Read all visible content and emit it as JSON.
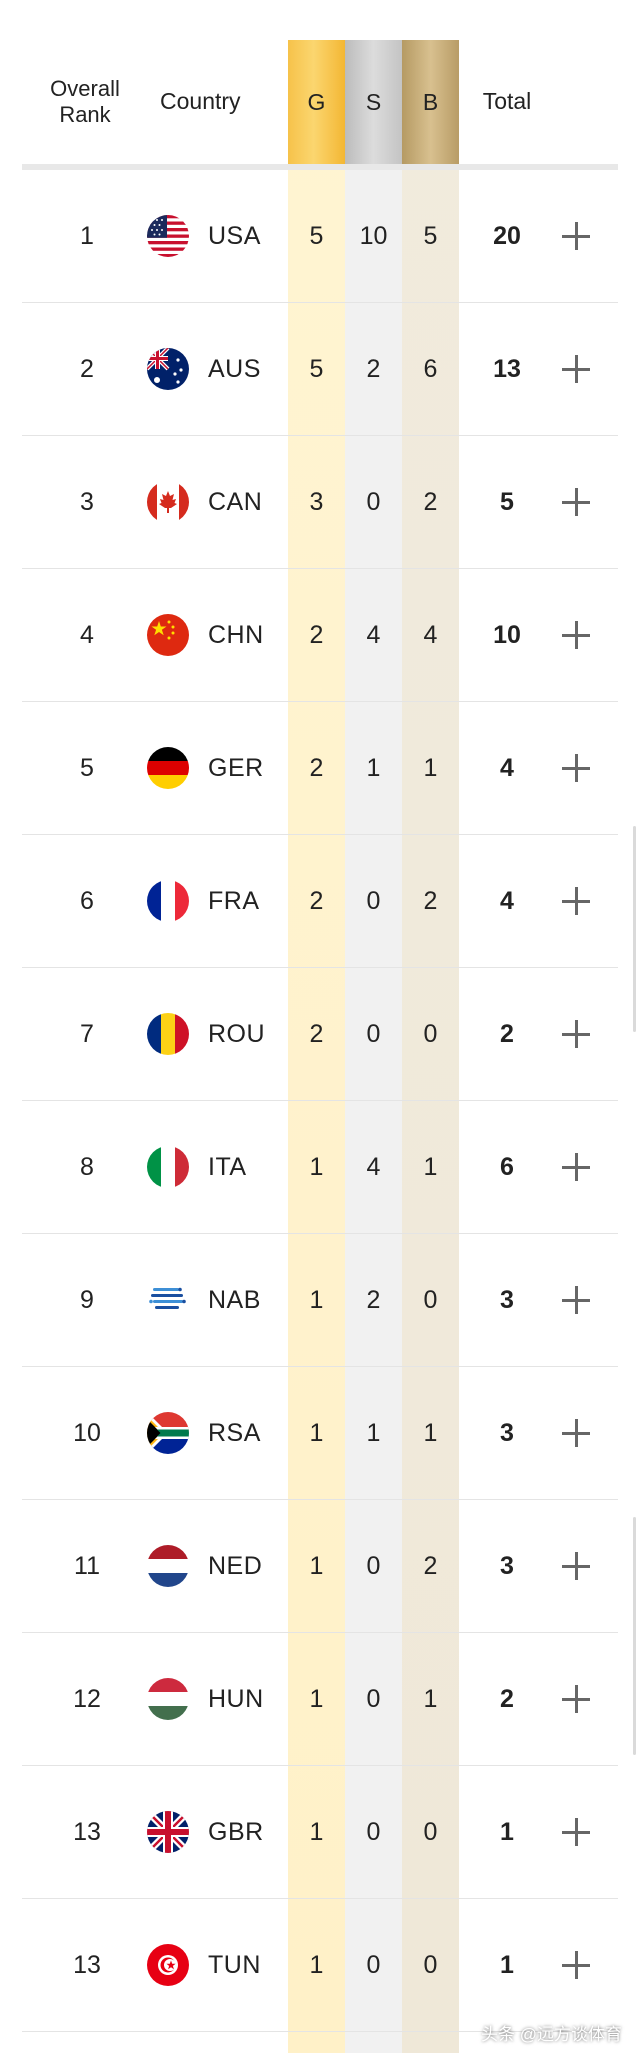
{
  "header": {
    "rank_label": "Overall\nRank",
    "country_label": "Country",
    "gold_label": "G",
    "silver_label": "S",
    "bronze_label": "B",
    "total_label": "Total"
  },
  "colors": {
    "gold": "#f6c24a",
    "silver": "#d0d0d0",
    "bronze": "#c9ad79"
  },
  "rows": [
    {
      "rank": "1",
      "code": "USA",
      "gold": "5",
      "silver": "10",
      "bronze": "5",
      "total": "20",
      "flag": "usa-flag-icon"
    },
    {
      "rank": "2",
      "code": "AUS",
      "gold": "5",
      "silver": "2",
      "bronze": "6",
      "total": "13",
      "flag": "aus-flag-icon"
    },
    {
      "rank": "3",
      "code": "CAN",
      "gold": "3",
      "silver": "0",
      "bronze": "2",
      "total": "5",
      "flag": "can-flag-icon"
    },
    {
      "rank": "4",
      "code": "CHN",
      "gold": "2",
      "silver": "4",
      "bronze": "4",
      "total": "10",
      "flag": "chn-flag-icon"
    },
    {
      "rank": "5",
      "code": "GER",
      "gold": "2",
      "silver": "1",
      "bronze": "1",
      "total": "4",
      "flag": "ger-flag-icon"
    },
    {
      "rank": "6",
      "code": "FRA",
      "gold": "2",
      "silver": "0",
      "bronze": "2",
      "total": "4",
      "flag": "fra-flag-icon"
    },
    {
      "rank": "7",
      "code": "ROU",
      "gold": "2",
      "silver": "0",
      "bronze": "0",
      "total": "2",
      "flag": "rou-flag-icon"
    },
    {
      "rank": "8",
      "code": "ITA",
      "gold": "1",
      "silver": "4",
      "bronze": "1",
      "total": "6",
      "flag": "ita-flag-icon"
    },
    {
      "rank": "9",
      "code": "NAB",
      "gold": "1",
      "silver": "2",
      "bronze": "0",
      "total": "3",
      "flag": "nab-flag-icon"
    },
    {
      "rank": "10",
      "code": "RSA",
      "gold": "1",
      "silver": "1",
      "bronze": "1",
      "total": "3",
      "flag": "rsa-flag-icon"
    },
    {
      "rank": "11",
      "code": "NED",
      "gold": "1",
      "silver": "0",
      "bronze": "2",
      "total": "3",
      "flag": "ned-flag-icon"
    },
    {
      "rank": "12",
      "code": "HUN",
      "gold": "1",
      "silver": "0",
      "bronze": "1",
      "total": "2",
      "flag": "hun-flag-icon"
    },
    {
      "rank": "13",
      "code": "GBR",
      "gold": "1",
      "silver": "0",
      "bronze": "0",
      "total": "1",
      "flag": "gbr-flag-icon"
    },
    {
      "rank": "13",
      "code": "TUN",
      "gold": "1",
      "silver": "0",
      "bronze": "0",
      "total": "1",
      "flag": "tun-flag-icon"
    }
  ],
  "watermark": "头条 @远方谈体育"
}
